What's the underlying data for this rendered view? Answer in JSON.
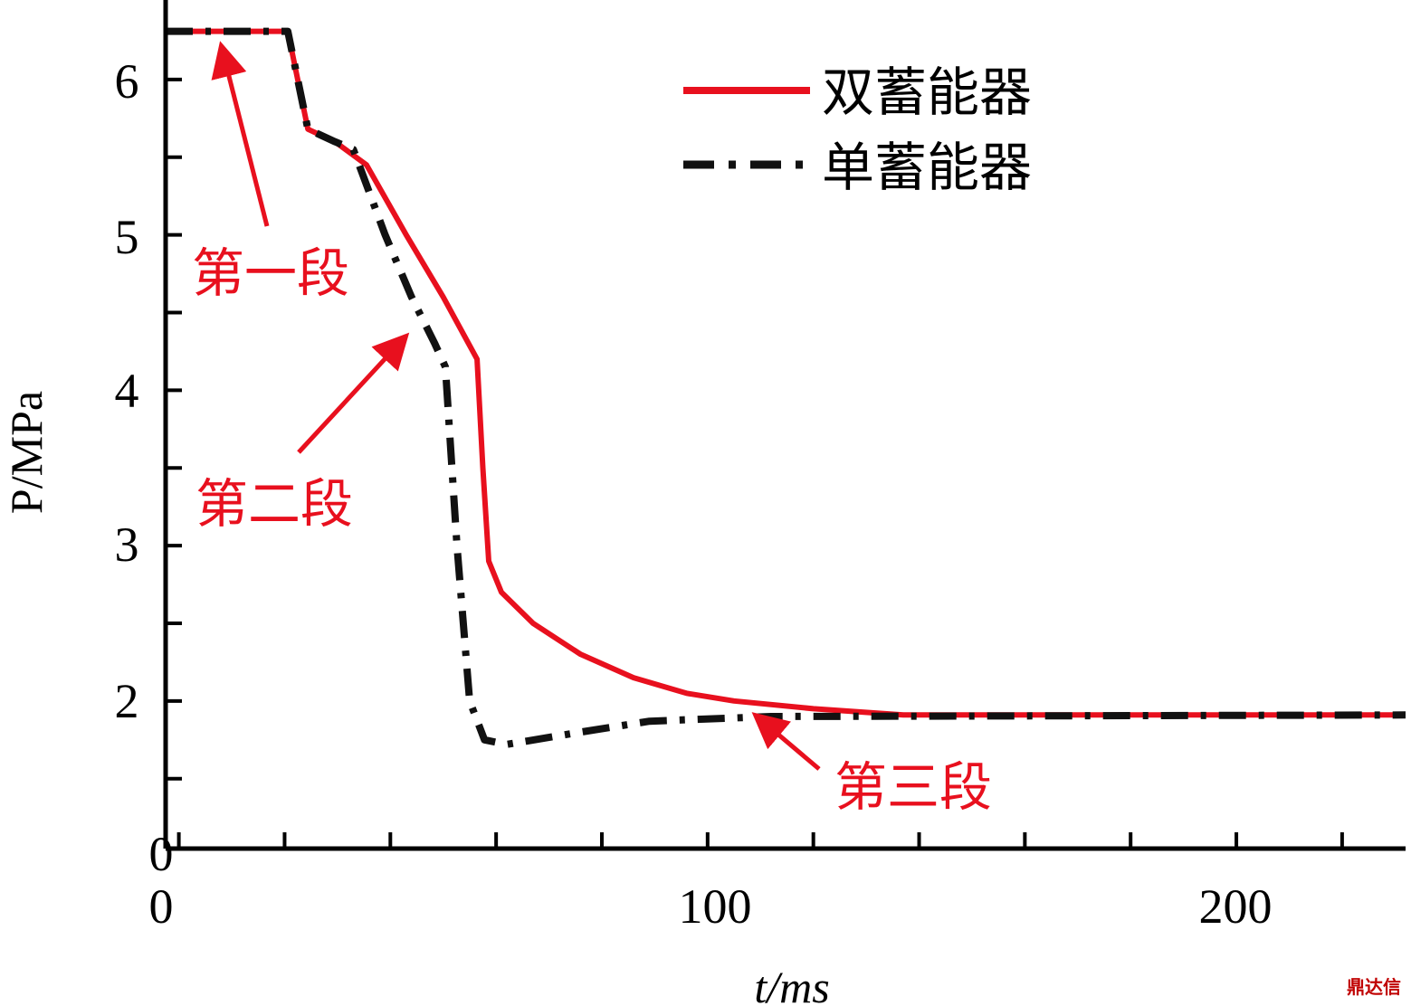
{
  "chart_data": {
    "type": "line",
    "title": "",
    "xlabel": "t/ms",
    "ylabel": "P/MPa",
    "xlim": [
      -2.5,
      232
    ],
    "ylim": [
      1.05,
      6.5
    ],
    "x_ticks": [
      0,
      100,
      200
    ],
    "x_tick_labels": [
      "0",
      "100",
      "200"
    ],
    "x_minor_ticks": [
      20,
      40,
      60,
      80,
      120,
      140,
      160,
      180,
      220
    ],
    "y_ticks": [
      2,
      3,
      4,
      5,
      6
    ],
    "y_tick_labels": [
      "2",
      "3",
      "4",
      "5",
      "6"
    ],
    "y_minor_ticks": [
      1.5,
      2.5,
      3.5,
      4.5,
      5.5
    ],
    "origin_label": "0",
    "grid": false,
    "legend_position": "top-right",
    "series": [
      {
        "name": "双蓄能器",
        "color": "#e8101e",
        "style": "solid",
        "x": [
          -2.5,
          20.6,
          24.4,
          29.5,
          35.5,
          43,
          50,
          56.4,
          57.5,
          58.6,
          61,
          67,
          76,
          86,
          96,
          105,
          120,
          137,
          232
        ],
        "y": [
          6.31,
          6.31,
          5.68,
          5.6,
          5.45,
          5.0,
          4.6,
          4.2,
          3.5,
          2.9,
          2.7,
          2.5,
          2.3,
          2.15,
          2.05,
          2.0,
          1.95,
          1.91,
          1.91
        ]
      },
      {
        "name": "单蓄能器",
        "color": "#111111",
        "style": "dashed",
        "x": [
          -2.5,
          20.6,
          24.4,
          29.5,
          33,
          39,
          44,
          48.4,
          50.4,
          52.6,
          55,
          57.8,
          62,
          76,
          89,
          112,
          232
        ],
        "y": [
          6.31,
          6.31,
          5.68,
          5.6,
          5.55,
          5.0,
          4.6,
          4.3,
          4.15,
          3.0,
          2.0,
          1.75,
          1.72,
          1.8,
          1.87,
          1.9,
          1.91
        ]
      }
    ],
    "annotations": [
      {
        "text": "第一段",
        "color": "#e8101e",
        "arrow_to": [
          8,
          6.22
        ]
      },
      {
        "text": "第二段",
        "color": "#e8101e",
        "arrow_to": [
          43,
          4.35
        ]
      },
      {
        "text": "第三段",
        "color": "#e8101e",
        "arrow_to": [
          109,
          1.91
        ]
      }
    ]
  },
  "watermark": "鼎达信"
}
